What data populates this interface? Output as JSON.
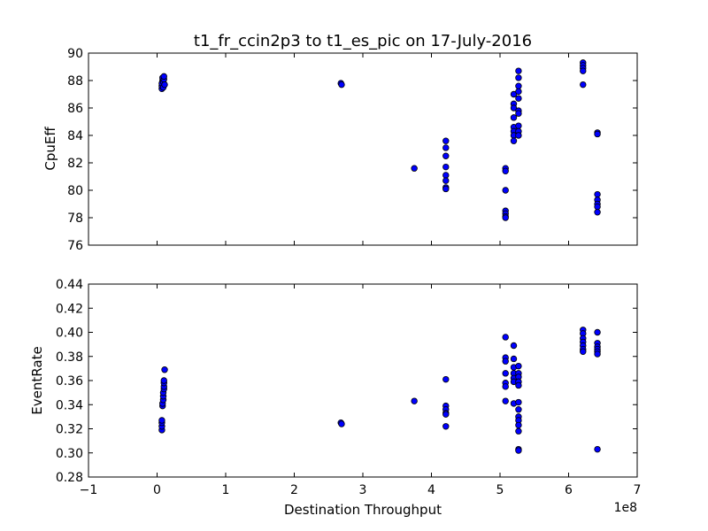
{
  "chart_data": {
    "type": "scatter",
    "title": "t1_fr_ccin2p3 to t1_es_pic on 17-July-2016",
    "xlabel": "Destination Throughput",
    "x_offset_text": "1e8",
    "xlim": [
      -1,
      7
    ],
    "x_ticks": [
      -1,
      0,
      1,
      2,
      3,
      4,
      5,
      6,
      7
    ],
    "x_tick_labels": [
      "−1",
      "0",
      "1",
      "2",
      "3",
      "4",
      "5",
      "6",
      "7"
    ],
    "subplots": [
      {
        "ylabel": "CpuEff",
        "ylim": [
          76,
          90
        ],
        "y_ticks": [
          76,
          78,
          80,
          82,
          84,
          86,
          88,
          90
        ],
        "y_tick_labels": [
          "76",
          "78",
          "80",
          "82",
          "84",
          "86",
          "88",
          "90"
        ],
        "points": [
          [
            0.07,
            87.4
          ],
          [
            0.07,
            87.6
          ],
          [
            0.07,
            87.8
          ],
          [
            0.08,
            88.0
          ],
          [
            0.08,
            88.2
          ],
          [
            0.09,
            87.5
          ],
          [
            0.09,
            87.9
          ],
          [
            0.1,
            88.1
          ],
          [
            0.1,
            88.3
          ],
          [
            0.11,
            87.7
          ],
          [
            2.68,
            87.8
          ],
          [
            2.69,
            87.7
          ],
          [
            3.75,
            81.6
          ],
          [
            4.21,
            83.6
          ],
          [
            4.21,
            83.1
          ],
          [
            4.21,
            82.5
          ],
          [
            4.21,
            81.7
          ],
          [
            4.21,
            81.1
          ],
          [
            4.21,
            80.7
          ],
          [
            4.21,
            80.2
          ],
          [
            4.21,
            80.1
          ],
          [
            5.08,
            81.6
          ],
          [
            5.08,
            81.4
          ],
          [
            5.08,
            80.0
          ],
          [
            5.08,
            78.5
          ],
          [
            5.08,
            78.3
          ],
          [
            5.08,
            78.1
          ],
          [
            5.08,
            78.0
          ],
          [
            5.2,
            87.0
          ],
          [
            5.2,
            86.3
          ],
          [
            5.2,
            86.0
          ],
          [
            5.2,
            85.3
          ],
          [
            5.2,
            84.6
          ],
          [
            5.2,
            84.3
          ],
          [
            5.2,
            84.0
          ],
          [
            5.2,
            83.6
          ],
          [
            5.27,
            88.7
          ],
          [
            5.27,
            88.2
          ],
          [
            5.27,
            87.6
          ],
          [
            5.27,
            87.2
          ],
          [
            5.27,
            86.7
          ],
          [
            5.27,
            85.8
          ],
          [
            5.27,
            85.6
          ],
          [
            5.27,
            84.7
          ],
          [
            5.27,
            84.3
          ],
          [
            5.27,
            84.0
          ],
          [
            6.21,
            89.3
          ],
          [
            6.21,
            89.1
          ],
          [
            6.21,
            88.9
          ],
          [
            6.21,
            88.7
          ],
          [
            6.21,
            87.7
          ],
          [
            6.42,
            84.2
          ],
          [
            6.42,
            84.1
          ],
          [
            6.42,
            79.7
          ],
          [
            6.42,
            79.3
          ],
          [
            6.42,
            79.0
          ],
          [
            6.42,
            78.8
          ],
          [
            6.42,
            78.4
          ]
        ]
      },
      {
        "ylabel": "EventRate",
        "ylim": [
          0.28,
          0.44
        ],
        "y_ticks": [
          0.28,
          0.3,
          0.32,
          0.34,
          0.36,
          0.38,
          0.4,
          0.42,
          0.44
        ],
        "y_tick_labels": [
          "0.28",
          "0.30",
          "0.32",
          "0.34",
          "0.36",
          "0.38",
          "0.40",
          "0.42",
          "0.44"
        ],
        "points": [
          [
            0.07,
            0.319
          ],
          [
            0.07,
            0.322
          ],
          [
            0.07,
            0.325
          ],
          [
            0.07,
            0.327
          ],
          [
            0.08,
            0.339
          ],
          [
            0.08,
            0.341
          ],
          [
            0.09,
            0.344
          ],
          [
            0.09,
            0.347
          ],
          [
            0.09,
            0.35
          ],
          [
            0.1,
            0.353
          ],
          [
            0.1,
            0.355
          ],
          [
            0.1,
            0.358
          ],
          [
            0.1,
            0.36
          ],
          [
            0.11,
            0.369
          ],
          [
            2.68,
            0.325
          ],
          [
            2.69,
            0.324
          ],
          [
            3.75,
            0.343
          ],
          [
            4.21,
            0.361
          ],
          [
            4.21,
            0.339
          ],
          [
            4.21,
            0.336
          ],
          [
            4.21,
            0.333
          ],
          [
            4.21,
            0.332
          ],
          [
            4.21,
            0.322
          ],
          [
            5.08,
            0.396
          ],
          [
            5.08,
            0.379
          ],
          [
            5.08,
            0.376
          ],
          [
            5.08,
            0.366
          ],
          [
            5.08,
            0.358
          ],
          [
            5.08,
            0.355
          ],
          [
            5.08,
            0.343
          ],
          [
            5.2,
            0.389
          ],
          [
            5.2,
            0.378
          ],
          [
            5.2,
            0.371
          ],
          [
            5.2,
            0.366
          ],
          [
            5.2,
            0.362
          ],
          [
            5.2,
            0.359
          ],
          [
            5.2,
            0.341
          ],
          [
            5.27,
            0.372
          ],
          [
            5.27,
            0.366
          ],
          [
            5.27,
            0.363
          ],
          [
            5.27,
            0.359
          ],
          [
            5.27,
            0.356
          ],
          [
            5.27,
            0.342
          ],
          [
            5.27,
            0.336
          ],
          [
            5.27,
            0.33
          ],
          [
            5.27,
            0.327
          ],
          [
            5.27,
            0.323
          ],
          [
            5.27,
            0.318
          ],
          [
            5.27,
            0.303
          ],
          [
            5.27,
            0.302
          ],
          [
            6.21,
            0.402
          ],
          [
            6.21,
            0.399
          ],
          [
            6.21,
            0.395
          ],
          [
            6.21,
            0.392
          ],
          [
            6.21,
            0.389
          ],
          [
            6.21,
            0.386
          ],
          [
            6.21,
            0.384
          ],
          [
            6.42,
            0.4
          ],
          [
            6.42,
            0.391
          ],
          [
            6.42,
            0.388
          ],
          [
            6.42,
            0.386
          ],
          [
            6.42,
            0.384
          ],
          [
            6.42,
            0.382
          ],
          [
            6.42,
            0.303
          ]
        ]
      }
    ]
  }
}
